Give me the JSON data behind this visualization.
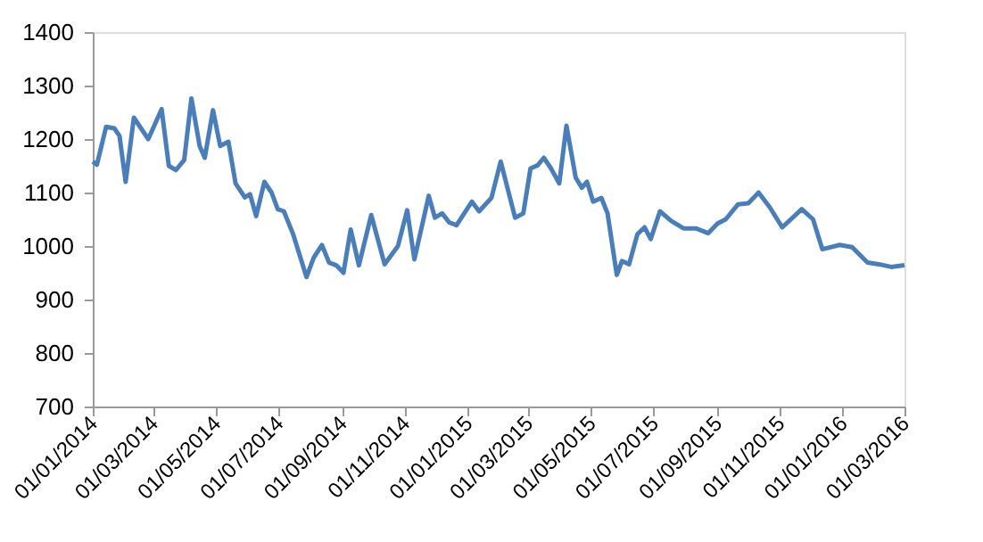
{
  "chart_data": {
    "type": "line",
    "x": [
      "2014-01-01",
      "2014-01-05",
      "2014-01-14",
      "2014-01-22",
      "2014-01-27",
      "2014-02-02",
      "2014-02-10",
      "2014-02-24",
      "2014-03-09",
      "2014-03-16",
      "2014-03-23",
      "2014-03-31",
      "2014-04-07",
      "2014-04-15",
      "2014-04-20",
      "2014-04-28",
      "2014-05-05",
      "2014-05-13",
      "2014-05-20",
      "2014-05-29",
      "2014-06-03",
      "2014-06-09",
      "2014-06-17",
      "2014-06-24",
      "2014-06-30",
      "2014-07-06",
      "2014-07-15",
      "2014-07-28",
      "2014-08-04",
      "2014-08-12",
      "2014-08-19",
      "2014-08-26",
      "2014-09-02",
      "2014-09-09",
      "2014-09-17",
      "2014-09-29",
      "2014-10-12",
      "2014-10-25",
      "2014-11-03",
      "2014-11-10",
      "2014-11-24",
      "2014-11-30",
      "2014-12-07",
      "2014-12-14",
      "2014-12-21",
      "2015-01-05",
      "2015-01-12",
      "2015-01-24",
      "2015-02-02",
      "2015-02-16",
      "2015-02-24",
      "2015-03-03",
      "2015-03-10",
      "2015-03-16",
      "2015-03-23",
      "2015-03-31",
      "2015-04-07",
      "2015-04-16",
      "2015-04-22",
      "2015-04-27",
      "2015-05-03",
      "2015-05-11",
      "2015-05-17",
      "2015-05-26",
      "2015-05-31",
      "2015-06-07",
      "2015-06-15",
      "2015-06-22",
      "2015-06-28",
      "2015-07-07",
      "2015-07-18",
      "2015-07-30",
      "2015-08-11",
      "2015-08-23",
      "2015-09-01",
      "2015-09-09",
      "2015-09-21",
      "2015-10-01",
      "2015-10-11",
      "2015-10-22",
      "2015-11-03",
      "2015-11-22",
      "2015-12-03",
      "2015-12-12",
      "2015-12-29",
      "2016-01-10",
      "2016-01-25",
      "2016-02-05",
      "2016-02-17",
      "2016-03-01"
    ],
    "series": [
      {
        "color": "#4a7ebb",
        "values": [
          1158,
          1152,
          1223,
          1220,
          1206,
          1120,
          1240,
          1200,
          1256,
          1150,
          1142,
          1161,
          1276,
          1187,
          1165,
          1254,
          1187,
          1195,
          1117,
          1091,
          1097,
          1056,
          1120,
          1100,
          1069,
          1065,
          1022,
          942,
          978,
          1002,
          969,
          964,
          950,
          1031,
          964,
          1058,
          966,
          1000,
          1067,
          975,
          1094,
          1053,
          1061,
          1044,
          1039,
          1083,
          1065,
          1090,
          1158,
          1053,
          1061,
          1145,
          1151,
          1165,
          1145,
          1117,
          1225,
          1128,
          1109,
          1120,
          1083,
          1090,
          1061,
          946,
          972,
          966,
          1022,
          1035,
          1013,
          1065,
          1047,
          1033,
          1033,
          1024,
          1042,
          1050,
          1078,
          1080,
          1100,
          1072,
          1035,
          1069,
          1050,
          994,
          1002,
          998,
          969,
          966,
          961,
          964
        ]
      }
    ],
    "xlim": [
      "2014-01-01",
      "2016-03-01"
    ],
    "xticks": [
      {
        "value": "2014-01-01",
        "label": "01/01/2014"
      },
      {
        "value": "2014-03-01",
        "label": "01/03/2014"
      },
      {
        "value": "2014-05-01",
        "label": "01/05/2014"
      },
      {
        "value": "2014-07-01",
        "label": "01/07/2014"
      },
      {
        "value": "2014-09-01",
        "label": "01/09/2014"
      },
      {
        "value": "2014-11-01",
        "label": "01/11/2014"
      },
      {
        "value": "2015-01-01",
        "label": "01/01/2015"
      },
      {
        "value": "2015-03-01",
        "label": "01/03/2015"
      },
      {
        "value": "2015-05-01",
        "label": "01/05/2015"
      },
      {
        "value": "2015-07-01",
        "label": "01/07/2015"
      },
      {
        "value": "2015-09-01",
        "label": "01/09/2015"
      },
      {
        "value": "2015-11-01",
        "label": "01/11/2015"
      },
      {
        "value": "2016-01-01",
        "label": "01/01/2016"
      },
      {
        "value": "2016-03-01",
        "label": "01/03/2016"
      }
    ],
    "ylim": [
      700,
      1400
    ],
    "yticks": [
      700,
      800,
      900,
      1000,
      1100,
      1200,
      1300,
      1400
    ],
    "grid": false,
    "marker": "none",
    "line_style": "solid"
  }
}
